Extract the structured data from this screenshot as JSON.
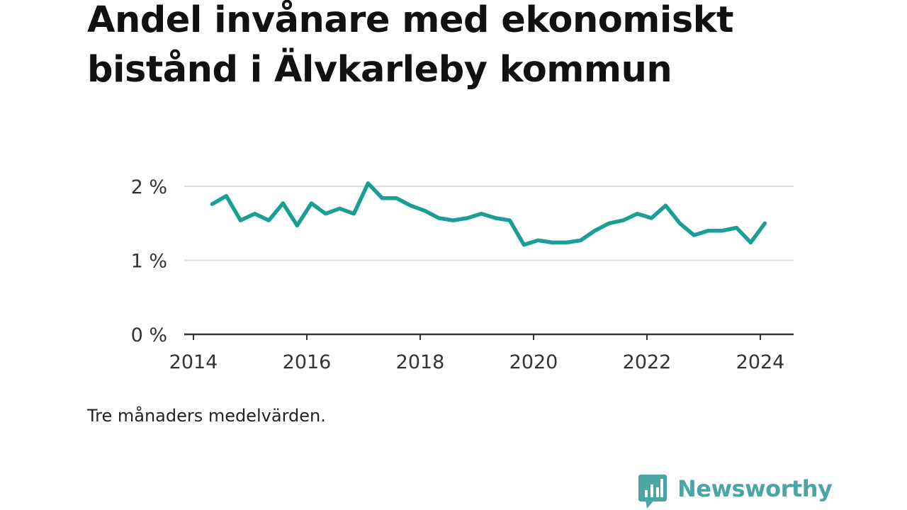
{
  "header": {
    "title": "Andel invånare med ekonomiskt bistånd i Älvkarleby kommun"
  },
  "footnote": "Tre månaders medelvärden.",
  "brand": {
    "name": "Newsworthy",
    "icon": "bar-chart-speech-bubble-icon",
    "color": "#4aa6a4"
  },
  "chart_data": {
    "type": "line",
    "title": "Andel invånare med ekonomiskt bistånd i Älvkarleby kommun",
    "xlabel": "",
    "ylabel": "",
    "xlim": [
      2014,
      2024.3
    ],
    "ylim": [
      0,
      2
    ],
    "grid": true,
    "x_ticks": [
      2014,
      2016,
      2018,
      2020,
      2022,
      2024
    ],
    "x_tick_labels": [
      "2014",
      "2016",
      "2018",
      "2020",
      "2022",
      "2024"
    ],
    "y_ticks": [
      0,
      1,
      2
    ],
    "y_tick_labels": [
      "0 %",
      "1 %",
      "2 %"
    ],
    "line_color": "#1a9e96",
    "series": [
      {
        "name": "",
        "x": [
          2014.33,
          2014.58,
          2014.83,
          2015.08,
          2015.33,
          2015.58,
          2015.83,
          2016.08,
          2016.33,
          2016.58,
          2016.83,
          2017.08,
          2017.33,
          2017.58,
          2017.83,
          2018.08,
          2018.33,
          2018.58,
          2018.83,
          2019.08,
          2019.33,
          2019.58,
          2019.83,
          2020.08,
          2020.33,
          2020.58,
          2020.83,
          2021.08,
          2021.33,
          2021.58,
          2021.83,
          2022.08,
          2022.33,
          2022.58,
          2022.83,
          2023.08,
          2023.33,
          2023.58,
          2023.83,
          2024.08
        ],
        "values": [
          1.76,
          1.87,
          1.54,
          1.63,
          1.54,
          1.77,
          1.47,
          1.77,
          1.63,
          1.7,
          1.63,
          2.04,
          1.84,
          1.84,
          1.74,
          1.67,
          1.57,
          1.54,
          1.57,
          1.63,
          1.57,
          1.54,
          1.21,
          1.27,
          1.24,
          1.24,
          1.27,
          1.4,
          1.5,
          1.54,
          1.63,
          1.57,
          1.74,
          1.5,
          1.34,
          1.4,
          1.4,
          1.44,
          1.24,
          1.5
        ]
      }
    ]
  }
}
